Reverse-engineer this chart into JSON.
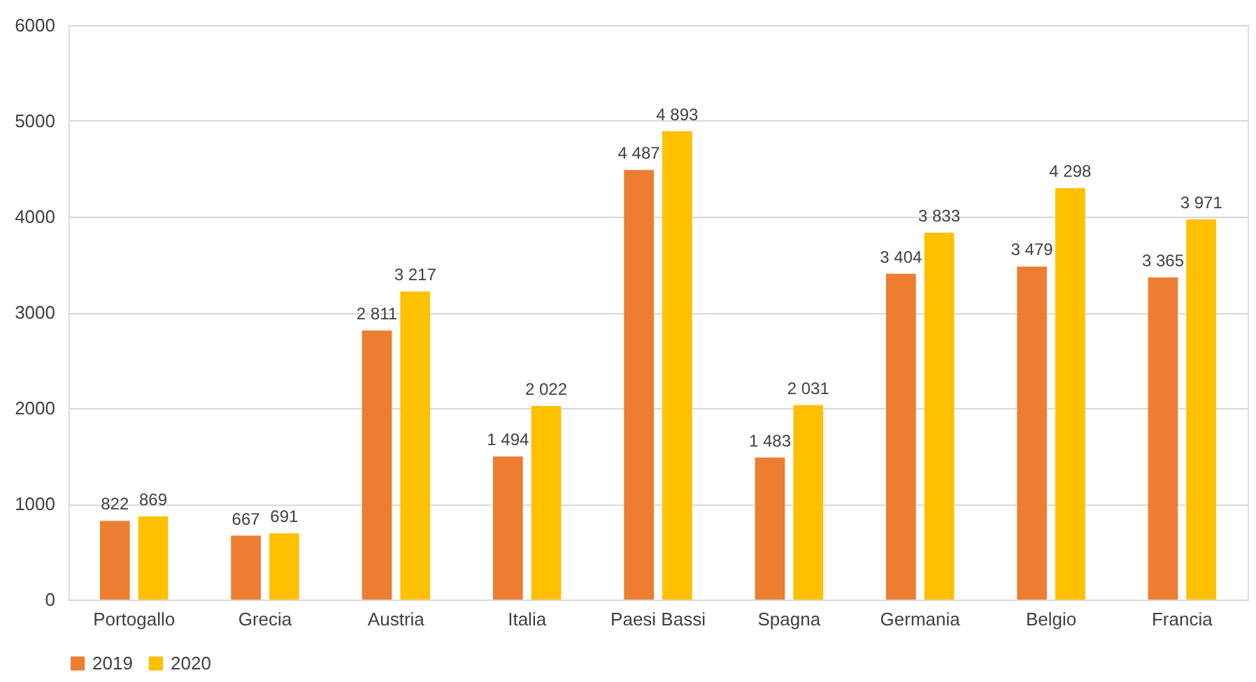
{
  "chart_data": {
    "type": "bar",
    "categories": [
      "Portogallo",
      "Grecia",
      "Austria",
      "Italia",
      "Paesi Bassi",
      "Spagna",
      "Germania",
      "Belgio",
      "Francia"
    ],
    "series": [
      {
        "name": "2019",
        "color": "#ed7d31",
        "values": [
          822,
          667,
          2811,
          1494,
          4487,
          1483,
          3404,
          3479,
          3365
        ],
        "value_labels": [
          "822",
          "667",
          "2 811",
          "1 494",
          "4 487",
          "1 483",
          "3 404",
          "3 479",
          "3 365"
        ]
      },
      {
        "name": "2020",
        "color": "#ffc000",
        "values": [
          869,
          691,
          3217,
          2022,
          4893,
          2031,
          3833,
          4298,
          3971
        ],
        "value_labels": [
          "869",
          "691",
          "3 217",
          "2 022",
          "4 893",
          "2 031",
          "3 833",
          "4 298",
          "3 971"
        ]
      }
    ],
    "ylim": [
      0,
      6000
    ],
    "yticks": [
      0,
      1000,
      2000,
      3000,
      4000,
      5000,
      6000
    ],
    "grid": "y",
    "legend": "bottom"
  }
}
